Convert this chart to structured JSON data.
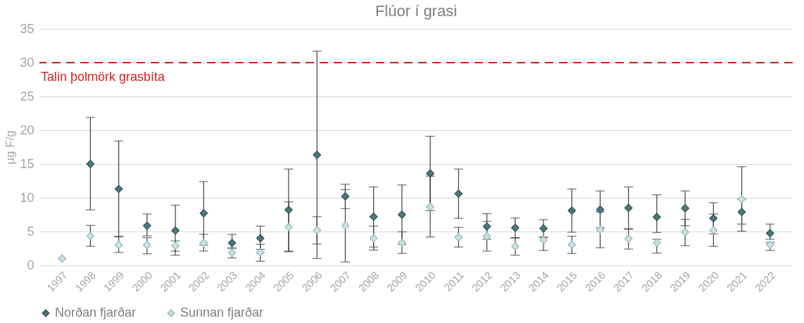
{
  "chart_data": {
    "type": "scatter",
    "title": "Flúor í grasi",
    "ylabel": "µg F/g",
    "categories": [
      "1997",
      "1998",
      "1999",
      "2000",
      "2001",
      "2002",
      "2003",
      "2004",
      "2005",
      "2006",
      "2007",
      "2008",
      "2009",
      "2010",
      "2011",
      "2012",
      "2013",
      "2014",
      "2015",
      "2016",
      "2017",
      "2018",
      "2019",
      "2020",
      "2021",
      "2022"
    ],
    "series": [
      {
        "name": "Norðan fjarðar",
        "color": "#4a7a7e",
        "values": [
          null,
          15.0,
          11.3,
          5.85,
          5.15,
          7.7,
          3.3,
          4.0,
          8.2,
          16.35,
          10.2,
          7.2,
          7.5,
          13.6,
          10.6,
          5.75,
          5.55,
          5.45,
          8.1,
          8.25,
          8.5,
          7.15,
          8.45,
          6.95,
          7.9,
          4.75
        ],
        "errors": [
          null,
          [
            8.2,
            21.9
          ],
          [
            4.2,
            18.4
          ],
          [
            4.35,
            7.6
          ],
          [
            2.1,
            8.9
          ],
          [
            3.0,
            12.4
          ],
          [
            2.55,
            4.6
          ],
          [
            2.35,
            5.8
          ],
          [
            2.0,
            14.25
          ],
          [
            1.0,
            31.7
          ],
          [
            8.4,
            12.0
          ],
          [
            2.7,
            11.6
          ],
          [
            3.1,
            11.9
          ],
          [
            8.1,
            19.1
          ],
          [
            6.95,
            14.25
          ],
          [
            3.85,
            7.65
          ],
          [
            4.1,
            7.0
          ],
          [
            4.15,
            6.75
          ],
          [
            4.9,
            11.3
          ],
          [
            5.55,
            11.0
          ],
          [
            5.45,
            11.6
          ],
          [
            4.85,
            10.45
          ],
          [
            5.85,
            11.0
          ],
          [
            4.65,
            9.25
          ],
          [
            6.1,
            9.8
          ],
          [
            3.85,
            6.1
          ]
        ]
      },
      {
        "name": "Sunnan fjarðar",
        "color": "#cde3e3",
        "values": [
          1.0,
          4.35,
          3.0,
          3.0,
          2.9,
          3.35,
          1.9,
          1.9,
          5.65,
          5.2,
          5.85,
          4.0,
          3.35,
          8.65,
          4.15,
          4.3,
          2.8,
          3.75,
          3.05,
          5.25,
          3.95,
          3.35,
          4.9,
          5.2,
          9.8,
          3.05
        ],
        "errors": [
          null,
          [
            2.8,
            5.9
          ],
          [
            1.9,
            4.3
          ],
          [
            1.7,
            4.1
          ],
          [
            1.5,
            3.6
          ],
          [
            2.1,
            4.6
          ],
          [
            1.1,
            2.55
          ],
          [
            0.6,
            3.1
          ],
          [
            2.1,
            9.4
          ],
          [
            3.15,
            7.2
          ],
          [
            0.5,
            11.2
          ],
          [
            2.25,
            5.8
          ],
          [
            1.75,
            4.95
          ],
          [
            4.2,
            13.2
          ],
          [
            2.7,
            5.6
          ],
          [
            2.1,
            6.5
          ],
          [
            1.5,
            4.0
          ],
          [
            2.2,
            4.15
          ],
          [
            1.75,
            4.3
          ],
          [
            2.6,
            7.9
          ],
          [
            2.4,
            5.3
          ],
          [
            1.8,
            3.85
          ],
          [
            2.9,
            6.8
          ],
          [
            2.8,
            7.6
          ],
          [
            5.05,
            14.6
          ],
          [
            2.2,
            3.4
          ]
        ]
      }
    ],
    "ylim": [
      0,
      35
    ],
    "yticks": [
      0,
      5,
      10,
      15,
      20,
      25,
      30,
      35
    ],
    "grid": "y",
    "legend": "bottom",
    "marker": "diamond",
    "ref_lines": [
      {
        "axis": "y",
        "value": 30,
        "label": "Talin þolmörk grasbíta",
        "color": "#d91f1f",
        "line_style": "dashed"
      }
    ]
  }
}
